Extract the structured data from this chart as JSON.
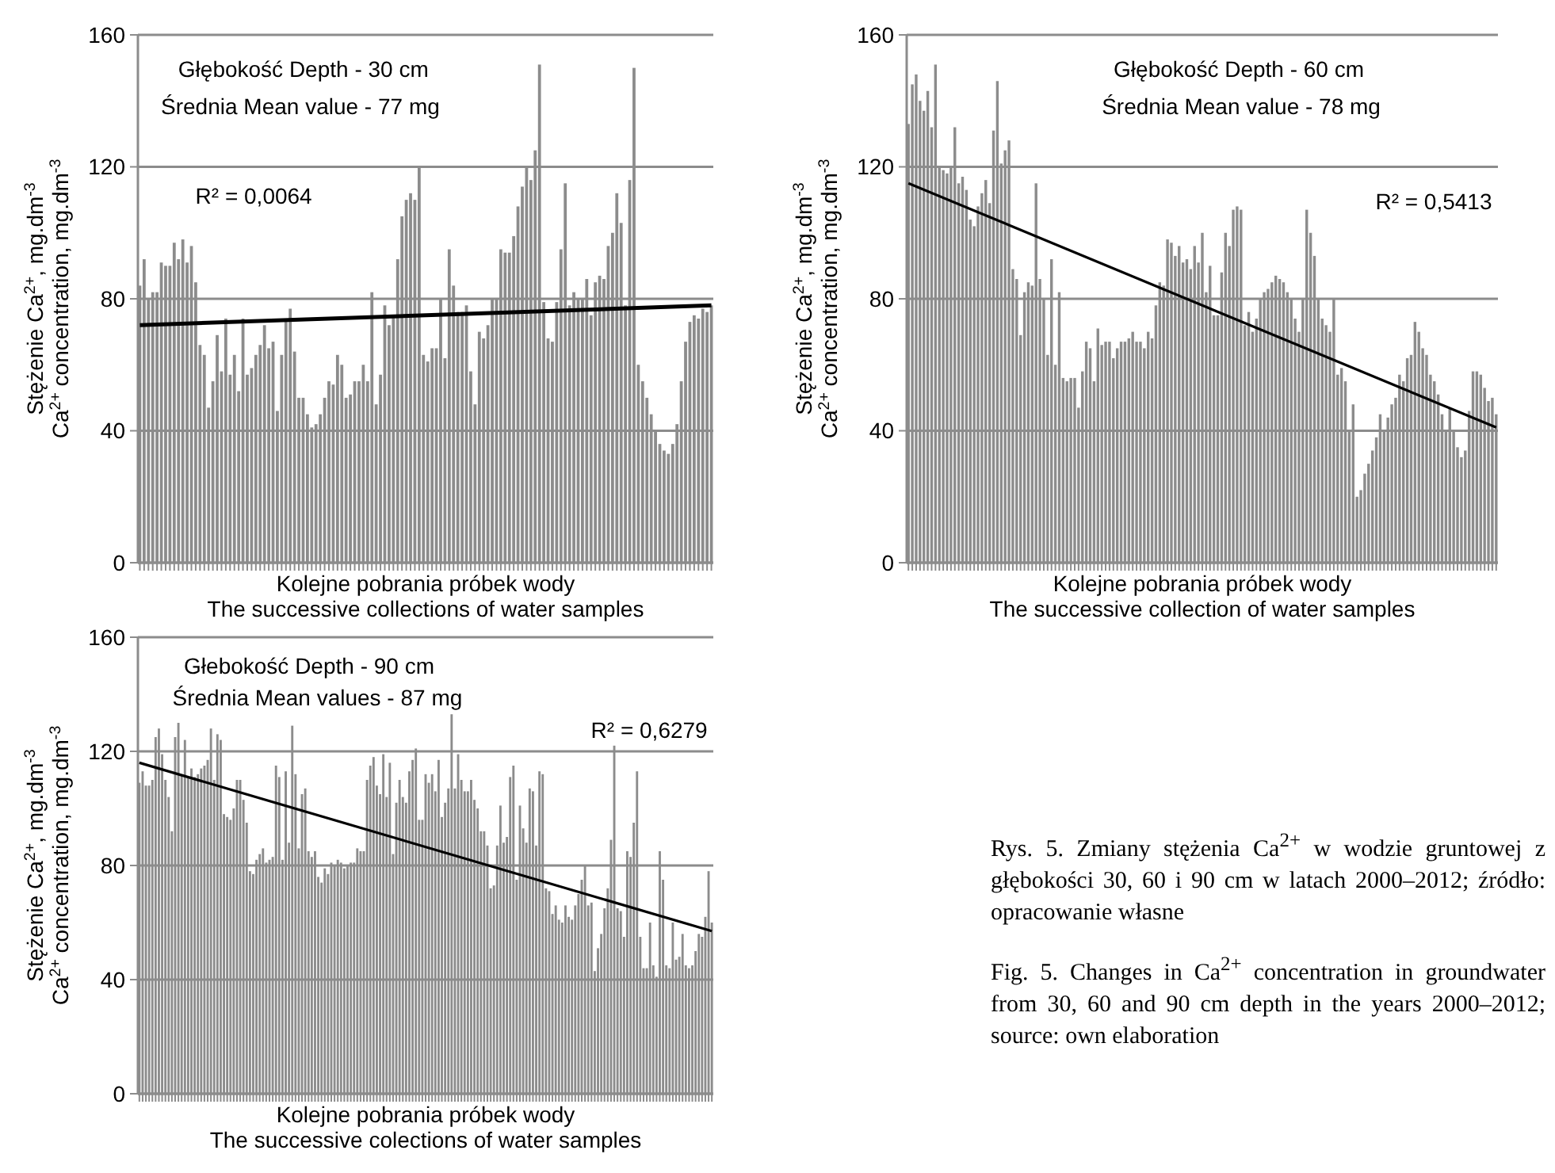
{
  "chart_data": [
    {
      "type": "bar",
      "xlabel": "Kolejne pobrania próbek wody\nThe successive collections of water samples",
      "ylabel": "Stężenie Ca$^{2+}$, mg.dm$^{-3}$\nCa$^{2+}$ concentration, mg.dm$^{-3}$",
      "ylim": [
        0,
        160
      ],
      "yticks": [
        0,
        40,
        80,
        120,
        160
      ],
      "grid": "y",
      "annotations": [
        "Głębokość   Depth - 30 cm",
        "Średnia  Mean value - 77 mg",
        "R² = 0,0064"
      ],
      "categories": [
        null,
        null,
        null,
        null,
        null,
        null,
        null,
        null,
        null,
        null,
        null,
        null,
        null,
        null,
        null,
        null,
        null,
        null,
        null,
        null,
        null,
        null,
        null,
        null,
        null,
        null,
        null,
        null,
        null,
        null,
        null,
        null,
        null,
        null,
        null,
        null,
        null,
        null,
        null,
        null,
        null,
        null,
        null,
        null,
        null,
        null,
        null,
        null,
        null,
        null,
        null,
        null,
        null,
        null,
        null,
        null,
        null,
        null,
        null,
        null,
        null,
        null,
        null,
        null,
        null,
        null,
        null,
        null,
        null,
        null,
        null,
        null,
        null,
        null,
        null,
        null,
        null,
        null,
        null,
        null,
        null,
        null,
        null,
        null,
        null,
        null,
        null,
        null,
        null,
        null,
        null,
        null,
        null,
        null,
        null,
        null,
        null,
        null,
        null,
        null,
        null,
        null,
        null,
        null,
        null,
        null,
        null,
        null,
        null,
        null,
        null,
        null,
        null,
        null,
        null,
        null,
        null,
        null,
        null,
        null,
        null,
        null,
        null,
        null,
        null,
        null,
        null,
        null,
        null,
        null,
        null,
        null,
        null,
        null
      ],
      "series": [
        {
          "type": "bar",
          "color": "#8c8c8c",
          "values": [
            84,
            92,
            80,
            82,
            82,
            91,
            90,
            90,
            97,
            92,
            98,
            91,
            96,
            85,
            66,
            63,
            47,
            55,
            69,
            58,
            74,
            57,
            63,
            52,
            74,
            57,
            59,
            63,
            66,
            72,
            65,
            67,
            46,
            63,
            74,
            77,
            64,
            50,
            50,
            45,
            41,
            42,
            45,
            50,
            55,
            54,
            63,
            60,
            50,
            51,
            55,
            55,
            60,
            55,
            82,
            48,
            57,
            78,
            72,
            75,
            92,
            105,
            110,
            112,
            110,
            120,
            63,
            61,
            65,
            65,
            80,
            62,
            95,
            84,
            76,
            76,
            78,
            58,
            48,
            70,
            68,
            72,
            80,
            80,
            95,
            94,
            94,
            99,
            108,
            114,
            120,
            116,
            125,
            151,
            79,
            68,
            67,
            79,
            95,
            115,
            78,
            82,
            80,
            80,
            86,
            75,
            85,
            87,
            86,
            96,
            100,
            112,
            103,
            78,
            116,
            150,
            60,
            55,
            50,
            45,
            40,
            36,
            34,
            33,
            36,
            42,
            55,
            67,
            73,
            75,
            74,
            77,
            76,
            78
          ]
        },
        {
          "type": "line",
          "color": "#000000",
          "values": [
            72,
            null,
            null,
            null,
            null,
            null,
            null,
            null,
            null,
            null,
            null,
            null,
            null,
            null,
            null,
            null,
            null,
            null,
            null,
            null,
            null,
            null,
            null,
            null,
            null,
            null,
            null,
            null,
            null,
            null,
            null,
            null,
            null,
            null,
            null,
            null,
            null,
            null,
            null,
            null,
            null,
            null,
            null,
            null,
            null,
            null,
            null,
            null,
            null,
            null,
            null,
            null,
            null,
            null,
            null,
            null,
            null,
            null,
            null,
            null,
            null,
            null,
            null,
            null,
            null,
            null,
            null,
            null,
            null,
            null,
            null,
            null,
            null,
            null,
            null,
            null,
            null,
            null,
            null,
            null,
            null,
            null,
            null,
            null,
            null,
            null,
            null,
            null,
            null,
            null,
            null,
            null,
            null,
            null,
            null,
            null,
            null,
            null,
            null,
            null,
            null,
            null,
            null,
            null,
            null,
            null,
            null,
            null,
            null,
            null,
            null,
            null,
            null,
            null,
            null,
            null,
            null,
            null,
            null,
            null,
            null,
            null,
            null,
            null,
            null,
            null,
            null,
            null,
            null,
            null,
            null,
            null,
            null,
            78
          ]
        }
      ]
    },
    {
      "type": "bar",
      "xlabel": "Kolejne pobrania próbek wody\nThe successive collection of water samples",
      "ylabel": "Stężenie Ca$^{2+}$, mg.dm$^{-3}$\nCa$^{2+}$ concentration, mg.dm$^{-3}$",
      "ylim": [
        0,
        160
      ],
      "yticks": [
        0,
        40,
        80,
        120,
        160
      ],
      "grid": "y",
      "annotations": [
        "Głębokość   Depth - 60 cm",
        "Średnia   Mean value - 78 mg",
        "R² = 0,5413"
      ],
      "categories": [
        null,
        null,
        null,
        null,
        null,
        null,
        null,
        null,
        null,
        null,
        null,
        null,
        null,
        null,
        null,
        null,
        null,
        null,
        null,
        null,
        null,
        null,
        null,
        null,
        null,
        null,
        null,
        null,
        null,
        null,
        null,
        null,
        null,
        null,
        null,
        null,
        null,
        null,
        null,
        null,
        null,
        null,
        null,
        null,
        null,
        null,
        null,
        null,
        null,
        null,
        null,
        null,
        null,
        null,
        null,
        null,
        null,
        null,
        null,
        null,
        null,
        null,
        null,
        null,
        null,
        null,
        null,
        null,
        null,
        null,
        null,
        null,
        null,
        null,
        null,
        null,
        null,
        null,
        null,
        null,
        null,
        null,
        null,
        null,
        null,
        null,
        null,
        null,
        null,
        null,
        null,
        null,
        null,
        null,
        null,
        null,
        null,
        null,
        null,
        null,
        null,
        null,
        null,
        null,
        null,
        null,
        null,
        null,
        null,
        null,
        null,
        null,
        null,
        null,
        null,
        null,
        null,
        null,
        null,
        null,
        null,
        null,
        null,
        null,
        null,
        null,
        null,
        null,
        null,
        null,
        null,
        null,
        null,
        null,
        null,
        null,
        null,
        null,
        null,
        null,
        null,
        null,
        null,
        null,
        null,
        null,
        null,
        null,
        null,
        null,
        null,
        null,
        null
      ],
      "series": [
        {
          "type": "bar",
          "color": "#8c8c8c",
          "values": [
            133,
            145,
            148,
            140,
            137,
            143,
            132,
            151,
            120,
            119,
            118,
            120,
            132,
            115,
            117,
            113,
            104,
            102,
            108,
            112,
            116,
            109,
            131,
            146,
            121,
            125,
            128,
            89,
            86,
            69,
            82,
            85,
            84,
            115,
            86,
            80,
            63,
            92,
            60,
            82,
            56,
            55,
            56,
            56,
            47,
            58,
            67,
            65,
            55,
            71,
            66,
            67,
            67,
            62,
            65,
            67,
            67,
            68,
            70,
            67,
            67,
            65,
            70,
            68,
            78,
            85,
            84,
            98,
            97,
            93,
            96,
            91,
            92,
            89,
            96,
            91,
            100,
            82,
            90,
            75,
            75,
            88,
            100,
            96,
            107,
            108,
            107,
            72,
            76,
            70,
            74,
            80,
            82,
            83,
            85,
            87,
            86,
            85,
            82,
            80,
            74,
            70,
            80,
            107,
            100,
            93,
            80,
            74,
            72,
            70,
            80,
            57,
            59,
            55,
            40,
            48,
            20,
            22,
            27,
            30,
            34,
            38,
            45,
            40,
            44,
            48,
            50,
            57,
            55,
            62,
            63,
            73,
            70,
            65,
            63,
            57,
            55,
            51,
            45,
            40,
            47,
            40,
            35,
            32,
            34,
            46,
            58,
            58,
            57,
            53,
            49,
            50,
            45
          ]
        },
        {
          "type": "line",
          "color": "#000000",
          "values": [
            115,
            null,
            null,
            null,
            null,
            null,
            null,
            null,
            null,
            null,
            null,
            null,
            null,
            null,
            null,
            null,
            null,
            null,
            null,
            null,
            null,
            null,
            null,
            null,
            null,
            null,
            null,
            null,
            null,
            null,
            null,
            null,
            null,
            null,
            null,
            null,
            null,
            null,
            null,
            null,
            null,
            null,
            null,
            null,
            null,
            null,
            null,
            null,
            null,
            null,
            null,
            null,
            null,
            null,
            null,
            null,
            null,
            null,
            null,
            null,
            null,
            null,
            null,
            null,
            null,
            null,
            null,
            null,
            null,
            null,
            null,
            null,
            null,
            null,
            null,
            null,
            null,
            null,
            null,
            null,
            null,
            null,
            null,
            null,
            null,
            null,
            null,
            null,
            null,
            null,
            null,
            null,
            null,
            null,
            null,
            null,
            null,
            null,
            null,
            null,
            null,
            null,
            null,
            null,
            null,
            null,
            null,
            null,
            null,
            null,
            null,
            null,
            null,
            null,
            null,
            null,
            null,
            null,
            null,
            null,
            null,
            null,
            null,
            null,
            null,
            null,
            null,
            null,
            null,
            null,
            null,
            null,
            null,
            null,
            null,
            null,
            null,
            null,
            null,
            null,
            null,
            null,
            null,
            null,
            null,
            null,
            null,
            null,
            null,
            null,
            null,
            null,
            41
          ]
        }
      ]
    },
    {
      "type": "bar",
      "xlabel": "Kolejne pobrania próbek wody\nThe successive colections of water samples",
      "ylabel": "Stężenie Ca$^{2+}$, mg.dm$^{-3}$\nCa$^{2+}$ concentration, mg.dm$^{-3}$",
      "ylim": [
        0,
        160
      ],
      "yticks": [
        0,
        40,
        80,
        120,
        160
      ],
      "grid": "y",
      "annotations": [
        "Głebokość   Depth - 90 cm",
        "Średnia   Mean values  - 87 mg",
        "R² = 0,6279"
      ],
      "categories": [
        null,
        null,
        null,
        null,
        null,
        null,
        null,
        null,
        null,
        null,
        null,
        null,
        null,
        null,
        null,
        null,
        null,
        null,
        null,
        null,
        null,
        null,
        null,
        null,
        null,
        null,
        null,
        null,
        null,
        null,
        null,
        null,
        null,
        null,
        null,
        null,
        null,
        null,
        null,
        null,
        null,
        null,
        null,
        null,
        null,
        null,
        null,
        null,
        null,
        null,
        null,
        null,
        null,
        null,
        null,
        null,
        null,
        null,
        null,
        null,
        null,
        null,
        null,
        null,
        null,
        null,
        null,
        null,
        null,
        null,
        null,
        null,
        null,
        null,
        null,
        null,
        null,
        null,
        null,
        null,
        null,
        null,
        null,
        null,
        null,
        null,
        null,
        null,
        null,
        null,
        null,
        null,
        null,
        null,
        null,
        null,
        null,
        null,
        null,
        null,
        null,
        null,
        null,
        null,
        null,
        null,
        null,
        null,
        null,
        null,
        null,
        null,
        null,
        null,
        null,
        null,
        null,
        null,
        null,
        null,
        null,
        null,
        null,
        null,
        null,
        null,
        null,
        null,
        null,
        null,
        null,
        null,
        null,
        null,
        null,
        null,
        null,
        null,
        null,
        null,
        null,
        null,
        null,
        null,
        null,
        null,
        null,
        null,
        null,
        null,
        null,
        null,
        null,
        null,
        null,
        null,
        null,
        null,
        null,
        null,
        null,
        null,
        null,
        null,
        null,
        null,
        null,
        null,
        null,
        null,
        null,
        null,
        null,
        null,
        null,
        null,
        null
      ],
      "series": [
        {
          "type": "bar",
          "color": "#8c8c8c",
          "values": [
            109,
            113,
            108,
            108,
            110,
            125,
            128,
            119,
            110,
            104,
            92,
            125,
            130,
            112,
            124,
            111,
            114,
            111,
            112,
            114,
            115,
            117,
            128,
            110,
            126,
            124,
            98,
            97,
            96,
            100,
            110,
            110,
            103,
            95,
            78,
            77,
            82,
            84,
            86,
            81,
            82,
            83,
            115,
            111,
            82,
            113,
            88,
            129,
            112,
            86,
            105,
            107,
            85,
            83,
            85,
            76,
            74,
            79,
            77,
            81,
            80,
            82,
            81,
            79,
            80,
            81,
            81,
            86,
            85,
            85,
            110,
            115,
            118,
            108,
            105,
            119,
            104,
            116,
            84,
            102,
            110,
            104,
            102,
            113,
            117,
            121,
            96,
            96,
            112,
            109,
            112,
            106,
            117,
            97,
            102,
            107,
            133,
            107,
            119,
            110,
            106,
            106,
            110,
            103,
            100,
            92,
            92,
            87,
            72,
            73,
            87,
            101,
            88,
            90,
            111,
            115,
            75,
            101,
            93,
            88,
            107,
            106,
            87,
            113,
            112,
            72,
            71,
            63,
            66,
            61,
            60,
            66,
            62,
            61,
            66,
            70,
            75,
            80,
            66,
            67,
            43,
            51,
            56,
            65,
            72,
            89,
            122,
            65,
            64,
            55,
            85,
            83,
            95,
            113,
            55,
            44,
            44,
            60,
            45,
            41,
            85,
            75,
            45,
            44,
            60,
            47,
            48,
            56,
            45,
            44,
            45,
            50,
            56,
            55,
            62,
            78,
            60
          ]
        },
        {
          "type": "line",
          "color": "#000000",
          "values": [
            116,
            null,
            null,
            null,
            null,
            null,
            null,
            null,
            null,
            null,
            null,
            null,
            null,
            null,
            null,
            null,
            null,
            null,
            null,
            null,
            null,
            null,
            null,
            null,
            null,
            null,
            null,
            null,
            null,
            null,
            null,
            null,
            null,
            null,
            null,
            null,
            null,
            null,
            null,
            null,
            null,
            null,
            null,
            null,
            null,
            null,
            null,
            null,
            null,
            null,
            null,
            null,
            null,
            null,
            null,
            null,
            null,
            null,
            null,
            null,
            null,
            null,
            null,
            null,
            null,
            null,
            null,
            null,
            null,
            null,
            null,
            null,
            null,
            null,
            null,
            null,
            null,
            null,
            null,
            null,
            null,
            null,
            null,
            null,
            null,
            null,
            null,
            null,
            null,
            null,
            null,
            null,
            null,
            null,
            null,
            null,
            null,
            null,
            null,
            null,
            null,
            null,
            null,
            null,
            null,
            null,
            null,
            null,
            null,
            null,
            null,
            null,
            null,
            null,
            null,
            null,
            null,
            null,
            null,
            null,
            null,
            null,
            null,
            null,
            null,
            null,
            null,
            null,
            null,
            null,
            null,
            null,
            null,
            null,
            null,
            null,
            null,
            null,
            null,
            null,
            null,
            null,
            null,
            null,
            null,
            null,
            null,
            null,
            null,
            null,
            null,
            null,
            null,
            null,
            null,
            null,
            null,
            null,
            null,
            null,
            null,
            null,
            null,
            null,
            null,
            null,
            null,
            null,
            null,
            null,
            null,
            null,
            null,
            null,
            null,
            null,
            57
          ]
        }
      ]
    },
    {
      "type": "other",
      "annotations": [
        "Rys. 5. Zmiany stężenia Ca$^{2+}$ w wodzie gruntowej z głębokości 30, 60 i 90 cm w latach 2000–2012; źródło: opracowanie własne",
        "Fig. 5. Changes in Ca$^{2+}$ concentration in groundwater from 30, 60 and 90 cm depth in the years 2000–2012; source: own elaboration"
      ]
    }
  ]
}
